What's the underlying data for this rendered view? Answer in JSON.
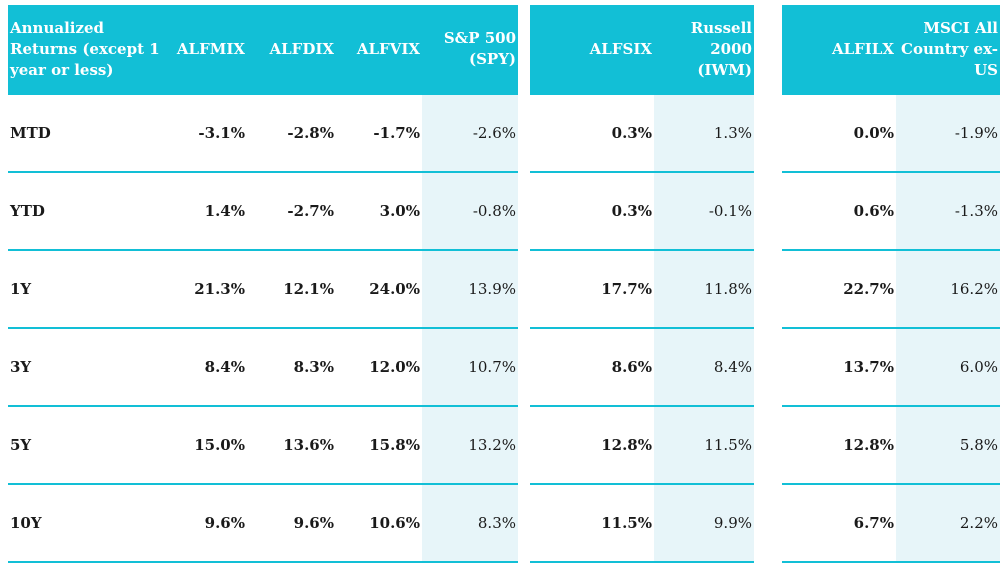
{
  "row_header_label": "Annualized Returns (except 1 year or less)",
  "row_labels": [
    "MTD",
    "YTD",
    "1Y",
    "3Y",
    "5Y",
    "10Y"
  ],
  "table1": {
    "headers": [
      "ALFMIX",
      "ALFDIX",
      "ALFVIX",
      "S&P 500 (SPY)"
    ],
    "rows": [
      [
        "-3.1%",
        "-2.8%",
        "-1.7%",
        "-2.6%"
      ],
      [
        "1.4%",
        "-2.7%",
        "3.0%",
        "-0.8%"
      ],
      [
        "21.3%",
        "12.1%",
        "24.0%",
        "13.9%"
      ],
      [
        "8.4%",
        "8.3%",
        "12.0%",
        "10.7%"
      ],
      [
        "15.0%",
        "13.6%",
        "15.8%",
        "13.2%"
      ],
      [
        "9.6%",
        "9.6%",
        "10.6%",
        "8.3%"
      ]
    ]
  },
  "table2": {
    "headers": [
      "ALFSIX",
      "Russell 2000 (IWM)"
    ],
    "rows": [
      [
        "0.3%",
        "1.3%"
      ],
      [
        "0.3%",
        "-0.1%"
      ],
      [
        "17.7%",
        "11.8%"
      ],
      [
        "8.6%",
        "8.4%"
      ],
      [
        "12.8%",
        "11.5%"
      ],
      [
        "11.5%",
        "9.9%"
      ]
    ]
  },
  "table3": {
    "headers": [
      "ALFILX",
      "MSCI All Country ex-US"
    ],
    "rows": [
      [
        "0.0%",
        "-1.9%"
      ],
      [
        "0.6%",
        "-1.3%"
      ],
      [
        "22.7%",
        "16.2%"
      ],
      [
        "13.7%",
        "6.0%"
      ],
      [
        "12.8%",
        "5.8%"
      ],
      [
        "6.7%",
        "2.2%"
      ]
    ]
  },
  "colors": {
    "header_bg": "#12bfd6",
    "benchmark_bg": "#e7f5f9",
    "rule": "#12bfd6"
  }
}
